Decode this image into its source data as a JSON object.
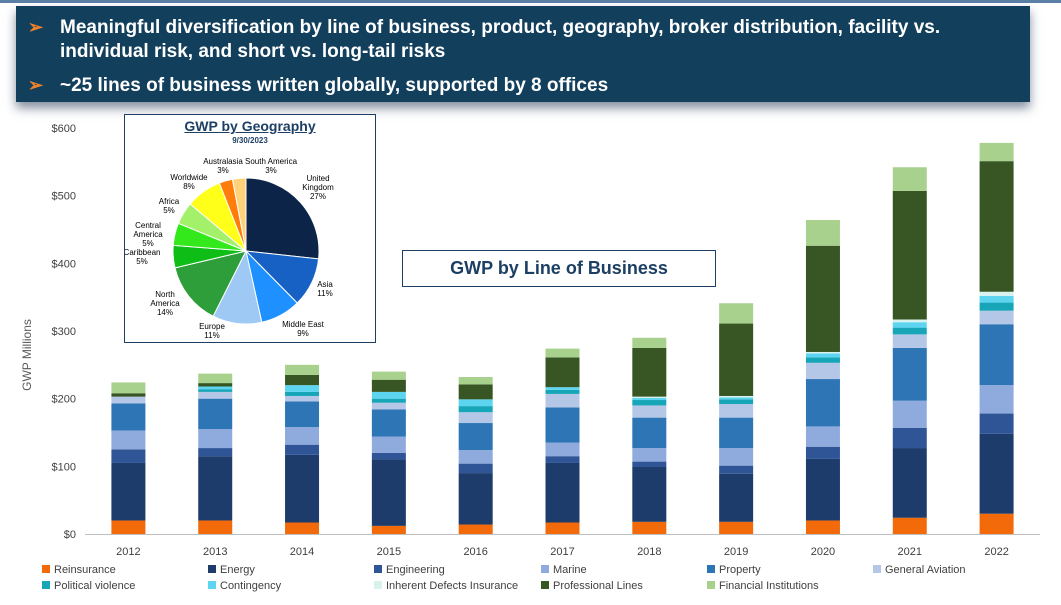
{
  "banner": {
    "bullets": [
      "Meaningful diversification by line of business, product, geography, broker distribution, facility vs. individual risk, and short vs. long-tail risks",
      "~25 lines of business written globally, supported by 8 offices"
    ],
    "bullet_glyph": "➢"
  },
  "chart_data": [
    {
      "type": "bar",
      "stacked": true,
      "title": "GWP by Line of Business",
      "xlabel": "",
      "ylabel": "GWP Millions",
      "ylim": [
        0,
        600
      ],
      "yticks": [
        "$0",
        "$100",
        "$200",
        "$300",
        "$400",
        "$500",
        "$600"
      ],
      "categories": [
        "2012",
        "2013",
        "2014",
        "2015",
        "2016",
        "2017",
        "2018",
        "2019",
        "2020",
        "2021",
        "2022"
      ],
      "legend_position": "bottom",
      "series": [
        {
          "name": "Reinsurance",
          "color": "#f26a0a",
          "values": [
            20,
            20,
            17,
            12,
            14,
            17,
            18,
            18,
            20,
            24,
            30
          ]
        },
        {
          "name": "Energy",
          "color": "#1d3b6b",
          "values": [
            85,
            95,
            100,
            98,
            76,
            88,
            81,
            71,
            91,
            103,
            118
          ]
        },
        {
          "name": "Engineering",
          "color": "#2f5597",
          "values": [
            20,
            12,
            15,
            10,
            14,
            10,
            8,
            12,
            18,
            30,
            30
          ]
        },
        {
          "name": "Marine",
          "color": "#8faadc",
          "values": [
            28,
            28,
            26,
            24,
            20,
            20,
            20,
            26,
            30,
            40,
            42
          ]
        },
        {
          "name": "Property",
          "color": "#2e75b6",
          "values": [
            40,
            45,
            38,
            40,
            40,
            52,
            45,
            45,
            70,
            78,
            90
          ]
        },
        {
          "name": "General Aviation",
          "color": "#b4c7e7",
          "values": [
            10,
            10,
            8,
            10,
            16,
            20,
            18,
            20,
            24,
            20,
            20
          ]
        },
        {
          "name": "Political violence",
          "color": "#17a5b8",
          "values": [
            0,
            4,
            6,
            6,
            9,
            6,
            8,
            7,
            8,
            10,
            12
          ]
        },
        {
          "name": "Contingency",
          "color": "#5dd5f0",
          "values": [
            0,
            4,
            10,
            10,
            10,
            4,
            3,
            3,
            6,
            8,
            10
          ]
        },
        {
          "name": "Inherent Defects Insurance",
          "color": "#d9f2ee",
          "values": [
            0,
            0,
            0,
            0,
            0,
            0,
            2,
            2,
            2,
            4,
            6
          ]
        },
        {
          "name": "Professional Lines",
          "color": "#375623",
          "values": [
            5,
            5,
            15,
            18,
            22,
            44,
            72,
            107,
            157,
            190,
            193
          ]
        },
        {
          "name": "Financial Institutions",
          "color": "#a9d18e",
          "values": [
            16,
            14,
            15,
            12,
            11,
            13,
            15,
            30,
            38,
            35,
            27
          ]
        }
      ]
    },
    {
      "type": "pie",
      "title": "GWP by Geography",
      "subtitle": "9/30/2023",
      "slices": [
        {
          "name": "United Kingdom",
          "value": 27,
          "label": "United\nKingdom\n27%",
          "color": "#0b2447"
        },
        {
          "name": "Asia",
          "value": 11,
          "label": "Asia\n11%",
          "color": "#1760c4"
        },
        {
          "name": "Middle East",
          "value": 9,
          "label": "Middle East\n9%",
          "color": "#1e90ff"
        },
        {
          "name": "Europe",
          "value": 11,
          "label": "Europe\n11%",
          "color": "#9ec9f5"
        },
        {
          "name": "North America",
          "value": 14,
          "label": "North\nAmerica\n14%",
          "color": "#2e9e3a"
        },
        {
          "name": "Caribbean",
          "value": 5,
          "label": "Caribbean\n5%",
          "color": "#0fbd17"
        },
        {
          "name": "Central America",
          "value": 5,
          "label": "Central\nAmerica\n5%",
          "color": "#33e81b"
        },
        {
          "name": "Africa",
          "value": 5,
          "label": "Africa\n5%",
          "color": "#a3f06a"
        },
        {
          "name": "Worldwide",
          "value": 8,
          "label": "Worldwide\n8%",
          "color": "#ffff1a"
        },
        {
          "name": "Australasia",
          "value": 3,
          "label": "Australasia\n3%",
          "color": "#ff7c0a"
        },
        {
          "name": "South America",
          "value": 3,
          "label": "South America\n3%",
          "color": "#ffd27a"
        }
      ]
    }
  ]
}
